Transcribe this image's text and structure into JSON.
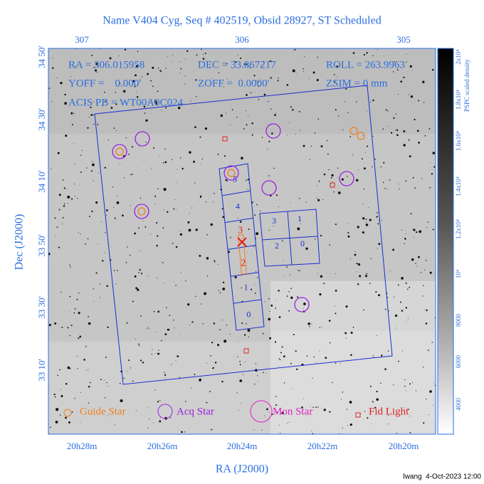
{
  "title": "Name V404 Cyg, Seq # 402519, Obsid 28927, ST Scheduled",
  "info": {
    "ra": "RA = 306.015958",
    "dec": "DEC = 33.867217",
    "roll": "ROLL = 263.9963",
    "yoff": "YOFF =    0.000'",
    "zoff": "ZOFF =  0.0000'",
    "zsim": "ZSIM = 0 mm",
    "acis_pb": "ACIS PB = WT00A0C024"
  },
  "axes": {
    "top_ticks": [
      "307",
      "306",
      "305"
    ],
    "left_ticks": [
      "34 50'",
      "34 30'",
      "34 10'",
      "33 50'",
      "33 30'",
      "33 10'"
    ],
    "bottom_ticks": [
      "20h28m",
      "20h26m",
      "20h24m",
      "20h22m",
      "20h20m"
    ],
    "x_label": "RA (J2000)",
    "y_label": "Dec (J2000)"
  },
  "colorbar": {
    "label": "PSPC scaled density",
    "ticks": [
      "2x10⁴",
      "1.8x10⁴",
      "1.6x10⁴",
      "1.4x10⁴",
      "1.2x10⁴",
      "10⁴",
      "8000",
      "6000",
      "4000"
    ]
  },
  "ccds": {
    "acis_s": [
      "0",
      "1",
      "2",
      "3",
      "4",
      "5"
    ],
    "acis_i": [
      "3",
      "1",
      "2",
      "0"
    ]
  },
  "legend": [
    "Guide Star",
    "Acq Star",
    "Mon Star",
    "Fid Light"
  ],
  "footer": "lwang  4-Oct-2023 12:00"
}
